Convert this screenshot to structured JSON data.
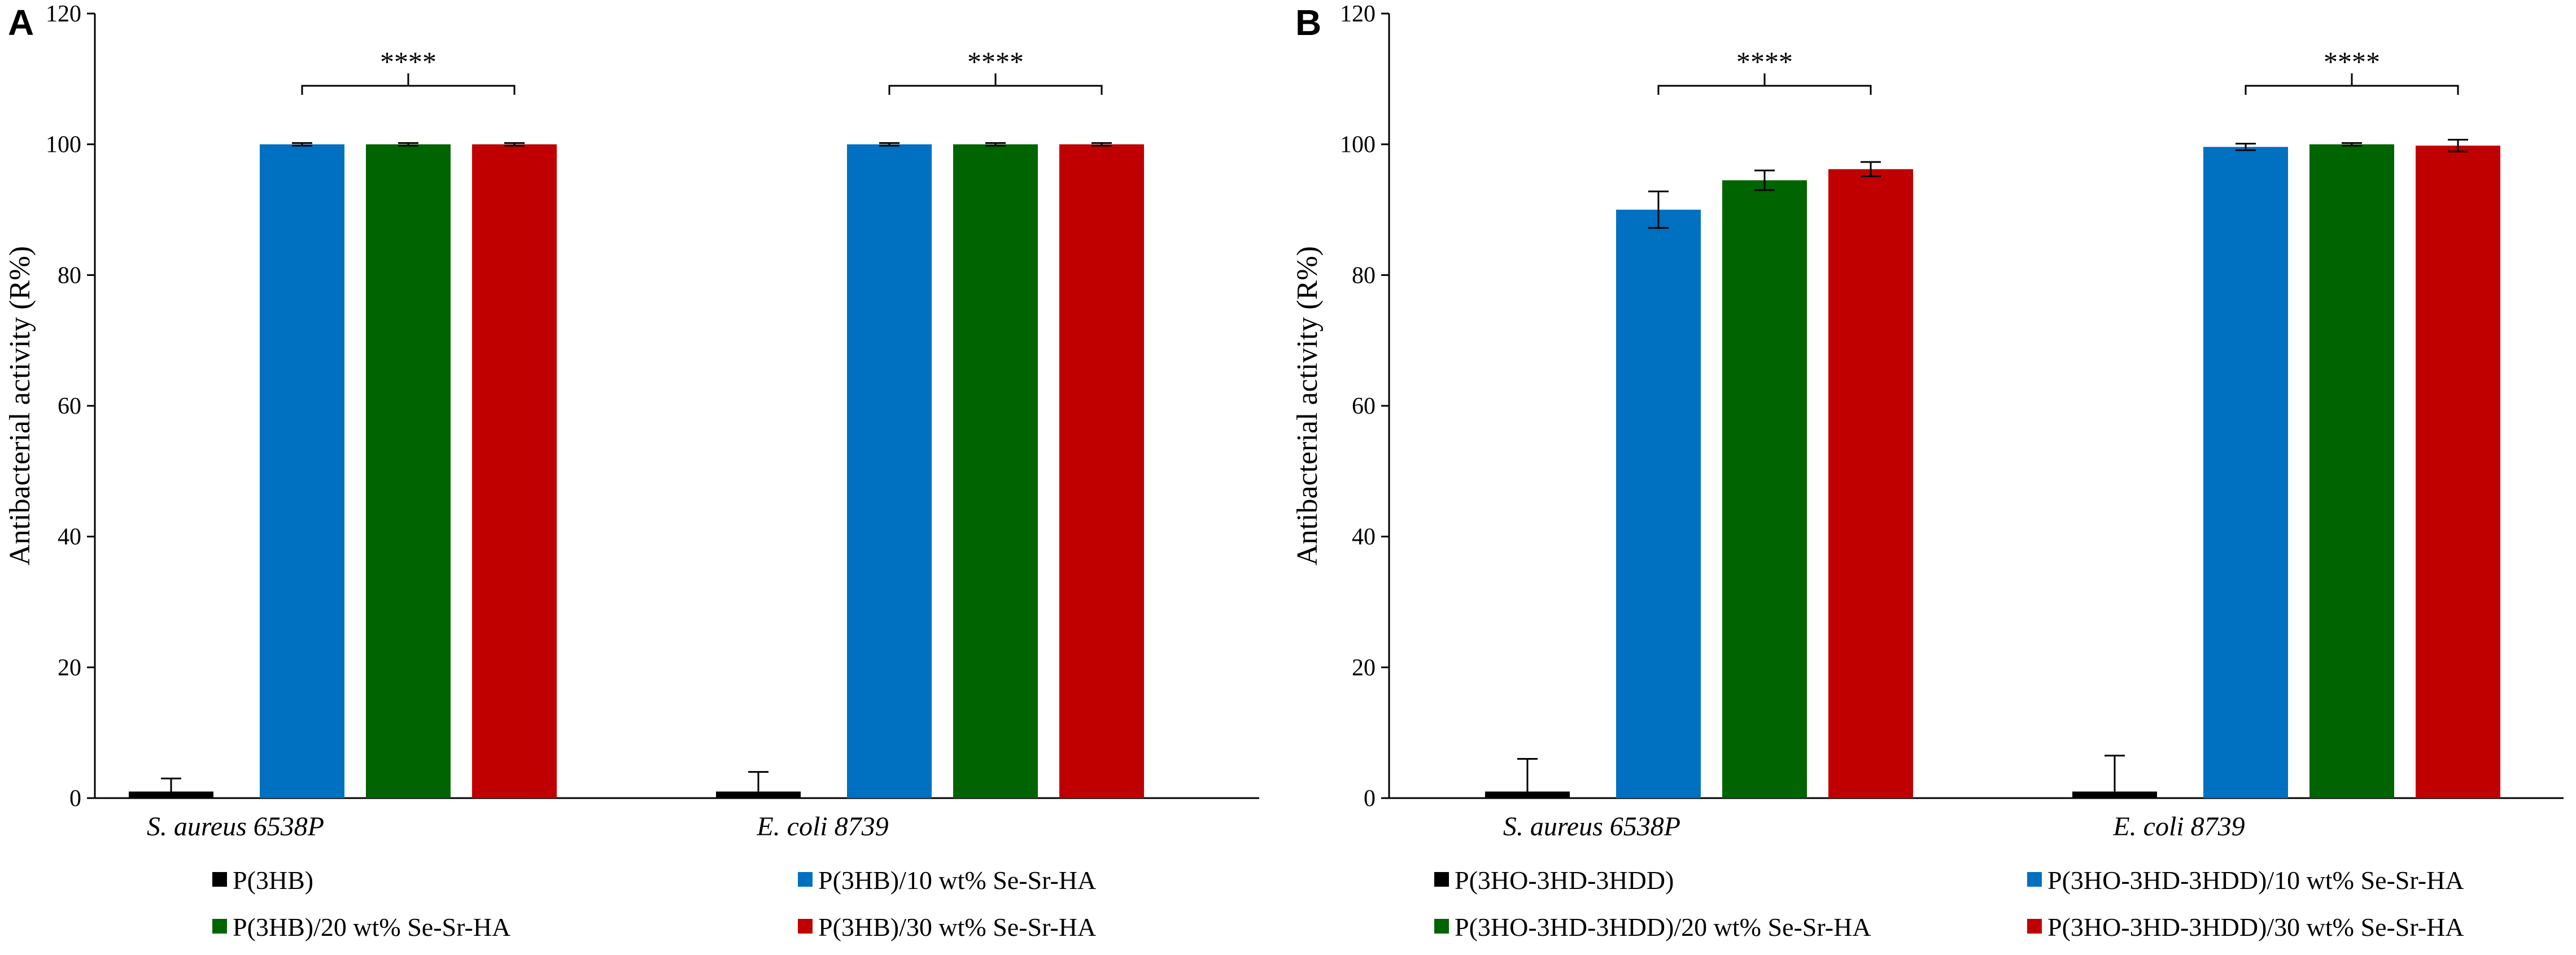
{
  "figure": {
    "panels": [
      "A",
      "B"
    ]
  },
  "chart_data": [
    {
      "panel_label": "A",
      "type": "bar",
      "title": "",
      "xlabel": "",
      "ylabel": "Antibacterial activity (R%)",
      "ylim": [
        0,
        120
      ],
      "yticks": [
        0,
        20,
        40,
        60,
        80,
        100,
        120
      ],
      "categories": [
        "S. aureus 6538P",
        "E. coli 8739"
      ],
      "series": [
        {
          "name": "P(3HB)",
          "color": "#000000",
          "values": [
            1.0,
            1.0
          ],
          "errors": [
            2.0,
            3.0
          ]
        },
        {
          "name": "P(3HB)/10 wt% Se-Sr-HA",
          "color": "#0070C0",
          "values": [
            100,
            100
          ],
          "errors": [
            0.2,
            0.2
          ]
        },
        {
          "name": "P(3HB)/20 wt% Se-Sr-HA",
          "color": "#006400",
          "values": [
            100,
            100
          ],
          "errors": [
            0.2,
            0.2
          ]
        },
        {
          "name": "P(3HB)/30 wt% Se-Sr-HA",
          "color": "#C00000",
          "values": [
            100,
            100
          ],
          "errors": [
            0.2,
            0.2
          ]
        }
      ],
      "significance": [
        {
          "category": 0,
          "label": "****"
        },
        {
          "category": 1,
          "label": "****"
        }
      ],
      "legend": "bottom"
    },
    {
      "panel_label": "B",
      "type": "bar",
      "title": "",
      "xlabel": "",
      "ylabel": "Antibacterial activity (R%)",
      "ylim": [
        0,
        120
      ],
      "yticks": [
        0,
        20,
        40,
        60,
        80,
        100,
        120
      ],
      "categories": [
        "S. aureus 6538P",
        "E. coli 8739"
      ],
      "series": [
        {
          "name": "P(3HO-3HD-3HDD)",
          "color": "#000000",
          "values": [
            1.0,
            1.0
          ],
          "errors": [
            5.0,
            5.5
          ]
        },
        {
          "name": "P(3HO-3HD-3HDD)/10 wt% Se-Sr-HA",
          "color": "#0070C0",
          "values": [
            90.0,
            99.6
          ],
          "errors": [
            2.8,
            0.5
          ]
        },
        {
          "name": "P(3HO-3HD-3HDD)/20 wt% Se-Sr-HA",
          "color": "#006400",
          "values": [
            94.5,
            100
          ],
          "errors": [
            1.5,
            0.2
          ]
        },
        {
          "name": "P(3HO-3HD-3HDD)/30 wt% Se-Sr-HA",
          "color": "#C00000",
          "values": [
            96.2,
            99.8
          ],
          "errors": [
            1.1,
            0.9
          ]
        }
      ],
      "significance": [
        {
          "category": 0,
          "label": "****"
        },
        {
          "category": 1,
          "label": "****"
        }
      ],
      "legend": "bottom"
    }
  ]
}
